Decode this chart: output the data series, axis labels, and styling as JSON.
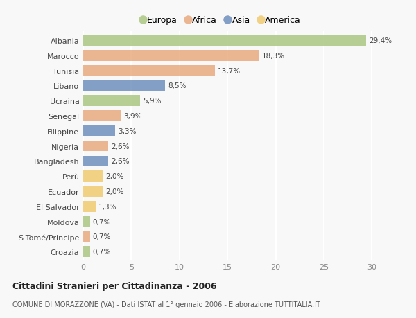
{
  "countries": [
    "Albania",
    "Marocco",
    "Tunisia",
    "Libano",
    "Ucraina",
    "Senegal",
    "Filippine",
    "Nigeria",
    "Bangladesh",
    "Perù",
    "Ecuador",
    "El Salvador",
    "Moldova",
    "S.Tomé/Principe",
    "Croazia"
  ],
  "values": [
    29.4,
    18.3,
    13.7,
    8.5,
    5.9,
    3.9,
    3.3,
    2.6,
    2.6,
    2.0,
    2.0,
    1.3,
    0.7,
    0.7,
    0.7
  ],
  "labels": [
    "29,4%",
    "18,3%",
    "13,7%",
    "8,5%",
    "5,9%",
    "3,9%",
    "3,3%",
    "2,6%",
    "2,6%",
    "2,0%",
    "2,0%",
    "1,3%",
    "0,7%",
    "0,7%",
    "0,7%"
  ],
  "categories": [
    "Europa",
    "Africa",
    "Africa",
    "Asia",
    "Europa",
    "Africa",
    "Asia",
    "Africa",
    "Asia",
    "America",
    "America",
    "America",
    "Europa",
    "Africa",
    "Europa"
  ],
  "colors": {
    "Europa": "#a8c47e",
    "Africa": "#e8a87c",
    "Asia": "#6b8cba",
    "America": "#f0c96b"
  },
  "legend_order": [
    "Europa",
    "Africa",
    "Asia",
    "America"
  ],
  "title": "Cittadini Stranieri per Cittadinanza - 2006",
  "subtitle": "COMUNE DI MORAZZONE (VA) - Dati ISTAT al 1° gennaio 2006 - Elaborazione TUTTITALIA.IT",
  "xlim": [
    0,
    32
  ],
  "xticks": [
    0,
    5,
    10,
    15,
    20,
    25,
    30
  ],
  "background_color": "#f8f8f8",
  "grid_color": "#ffffff",
  "bar_alpha": 0.82
}
